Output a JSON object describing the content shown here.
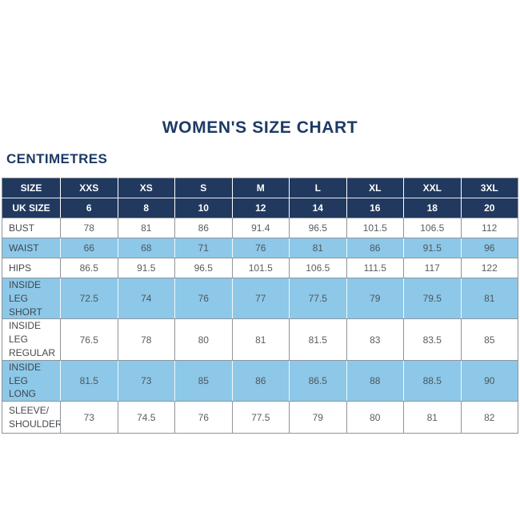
{
  "title": "WOMEN'S SIZE CHART",
  "subtitle": "CENTIMETRES",
  "colors": {
    "header_navy": "#21395f",
    "row_blue": "#8dc8e8",
    "title_navy": "#1d3a64",
    "grid_gray": "#8f959c"
  },
  "table": {
    "size_header": {
      "label": "SIZE",
      "values": [
        "XXS",
        "XS",
        "S",
        "M",
        "L",
        "XL",
        "XXL",
        "3XL"
      ]
    },
    "uk_size_header": {
      "label": "UK SIZE",
      "values": [
        "6",
        "8",
        "10",
        "12",
        "14",
        "16",
        "18",
        "20"
      ]
    },
    "rows": [
      {
        "label": "BUST",
        "values": [
          "78",
          "81",
          "86",
          "91.4",
          "96.5",
          "101.5",
          "106.5",
          "112"
        ]
      },
      {
        "label": "WAIST",
        "values": [
          "66",
          "68",
          "71",
          "76",
          "81",
          "86",
          "91.5",
          "96"
        ]
      },
      {
        "label": "HIPS",
        "values": [
          "86.5",
          "91.5",
          "96.5",
          "101.5",
          "106.5",
          "111.5",
          "117",
          "122"
        ]
      },
      {
        "label": "INSIDE LEG\nSHORT",
        "values": [
          "72.5",
          "74",
          "76",
          "77",
          "77.5",
          "79",
          "79.5",
          "81"
        ]
      },
      {
        "label": "INSIDE LEG\nREGULAR",
        "values": [
          "76.5",
          "78",
          "80",
          "81",
          "81.5",
          "83",
          "83.5",
          "85"
        ]
      },
      {
        "label": "INSIDE LEG\nLONG",
        "values": [
          "81.5",
          "73",
          "85",
          "86",
          "86.5",
          "88",
          "88.5",
          "90"
        ]
      },
      {
        "label": "SLEEVE/\nSHOULDER",
        "values": [
          "73",
          "74.5",
          "76",
          "77.5",
          "79",
          "80",
          "81",
          "82"
        ]
      }
    ]
  },
  "chart_data": {
    "type": "table",
    "title": "WOMEN'S SIZE CHART",
    "units": "CENTIMETRES",
    "columns": [
      "SIZE",
      "XXS",
      "XS",
      "S",
      "M",
      "L",
      "XL",
      "XXL",
      "3XL"
    ],
    "uk_sizes": [
      6,
      8,
      10,
      12,
      14,
      16,
      18,
      20
    ],
    "rows": [
      {
        "label": "BUST",
        "values": [
          78,
          81,
          86,
          91.4,
          96.5,
          101.5,
          106.5,
          112
        ]
      },
      {
        "label": "WAIST",
        "values": [
          66,
          68,
          71,
          76,
          81,
          86,
          91.5,
          96
        ]
      },
      {
        "label": "HIPS",
        "values": [
          86.5,
          91.5,
          96.5,
          101.5,
          106.5,
          111.5,
          117,
          122
        ]
      },
      {
        "label": "INSIDE LEG SHORT",
        "values": [
          72.5,
          74,
          76,
          77,
          77.5,
          79,
          79.5,
          81
        ]
      },
      {
        "label": "INSIDE LEG REGULAR",
        "values": [
          76.5,
          78,
          80,
          81,
          81.5,
          83,
          83.5,
          85
        ]
      },
      {
        "label": "INSIDE LEG LONG",
        "values": [
          81.5,
          73,
          85,
          86,
          86.5,
          88,
          88.5,
          90
        ]
      },
      {
        "label": "SLEEVE/SHOULDER",
        "values": [
          73,
          74.5,
          76,
          77.5,
          79,
          80,
          81,
          82
        ]
      }
    ]
  }
}
